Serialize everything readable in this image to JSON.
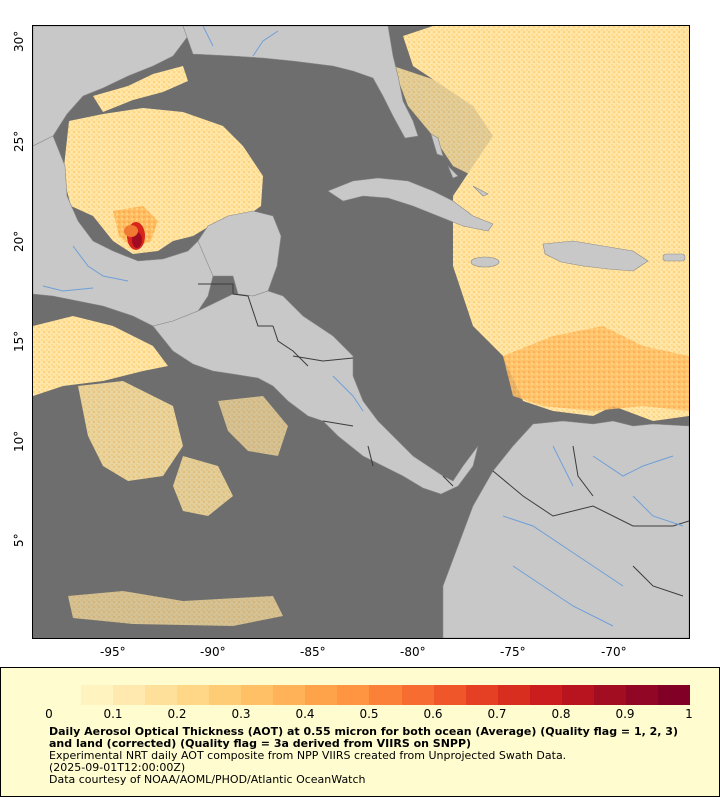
{
  "map": {
    "lon_ticks": [
      "-95°",
      "-90°",
      "-85°",
      "-80°",
      "-75°",
      "-70°"
    ],
    "lat_ticks": [
      "30°",
      "25°",
      "20°",
      "15°",
      "10°",
      "5°"
    ],
    "colors": {
      "ocean_nodata": "#6e6e6e",
      "land": "#c8c8c8",
      "rivers": "#6f9fd8",
      "borders": "#444444"
    }
  },
  "legend": {
    "ticks": [
      "0",
      "0.1",
      "0.2",
      "0.3",
      "0.4",
      "0.5",
      "0.6",
      "0.7",
      "0.8",
      "0.9",
      "1"
    ],
    "colorscale": [
      "#fffdd0",
      "#ffeab0",
      "#ffd98a",
      "#ffc46a",
      "#ffa94e",
      "#ff8c3c",
      "#f5632e",
      "#e23a22",
      "#c81a1c",
      "#a00c22",
      "#800026"
    ],
    "title": "Daily Aerosol Optical Thickness (AOT) at 0.55 micron for both ocean (Average) (Quality flag = 1, 2, 3) and land (corrected) (Quality flag = 3a derived from VIIRS on SNPP)",
    "subtitle": "Experimental NRT daily AOT composite from NPP VIIRS created from Unprojected Swath Data.",
    "timestamp": "(2025-09-01T12:00:00Z)",
    "credit": "Data courtesy of NOAA/AOML/PHOD/Atlantic OceanWatch"
  }
}
